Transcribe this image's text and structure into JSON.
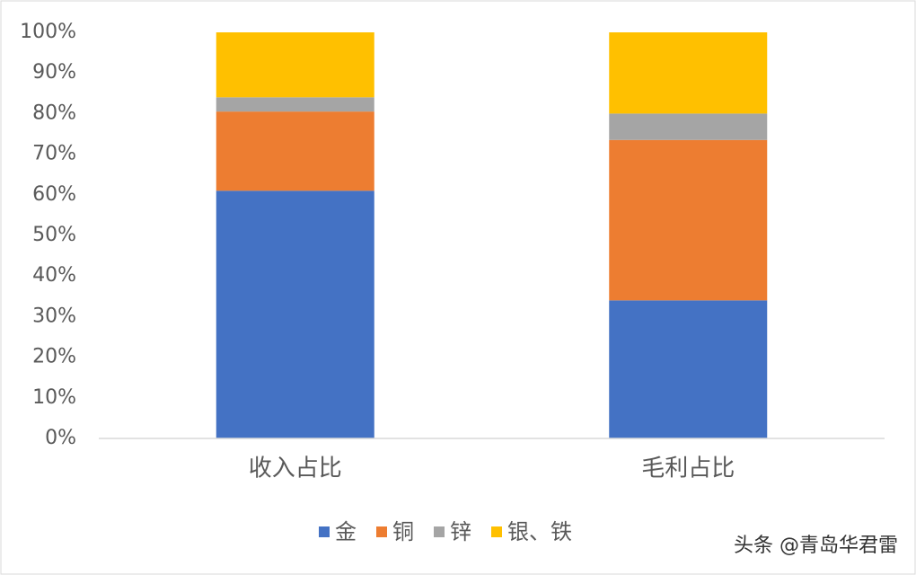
{
  "chart_data": {
    "type": "stacked_bar",
    "categories": [
      "收入占比",
      "毛利占比"
    ],
    "series": [
      {
        "name": "金",
        "color": "#4472c4",
        "values": [
          61,
          34
        ]
      },
      {
        "name": "铜",
        "color": "#ed7d31",
        "values": [
          19.5,
          39.5
        ]
      },
      {
        "name": "锌",
        "color": "#a5a5a5",
        "values": [
          3.5,
          6.5
        ]
      },
      {
        "name": "银、铁",
        "color": "#ffc000",
        "values": [
          16,
          20
        ]
      }
    ],
    "ylim": [
      0,
      100
    ],
    "yticks": [
      {
        "value": 0,
        "label": "0%"
      },
      {
        "value": 10,
        "label": "10%"
      },
      {
        "value": 20,
        "label": "20%"
      },
      {
        "value": 30,
        "label": "30%"
      },
      {
        "value": 40,
        "label": "40%"
      },
      {
        "value": 50,
        "label": "50%"
      },
      {
        "value": 60,
        "label": "60%"
      },
      {
        "value": 70,
        "label": "70%"
      },
      {
        "value": 80,
        "label": "80%"
      },
      {
        "value": 90,
        "label": "90%"
      },
      {
        "value": 100,
        "label": "100%"
      }
    ],
    "legend": "bottom",
    "watermark": "头条 @青岛华君雷"
  }
}
